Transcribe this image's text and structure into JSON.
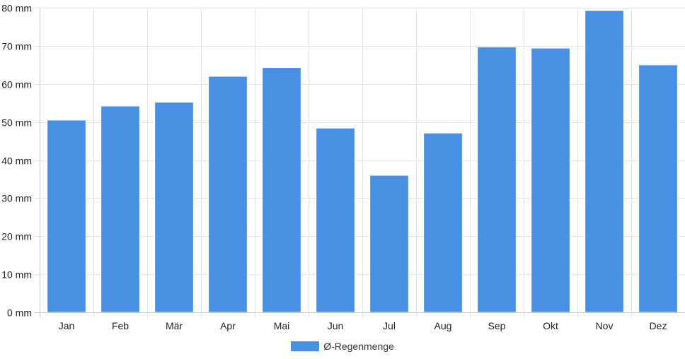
{
  "chart_data": {
    "type": "bar",
    "categories": [
      "Jan",
      "Feb",
      "Mär",
      "Apr",
      "Mai",
      "Jun",
      "Jul",
      "Aug",
      "Sep",
      "Okt",
      "Nov",
      "Dez"
    ],
    "series": [
      {
        "name": "Ø-Regenmenge",
        "values": [
          50.5,
          54.2,
          55.2,
          62.0,
          64.3,
          48.4,
          36.0,
          47.1,
          69.7,
          69.4,
          79.3,
          65.0
        ],
        "color": "#4a90e2"
      }
    ],
    "yticks": [
      "0 mm",
      "10 mm",
      "20 mm",
      "30 mm",
      "40 mm",
      "50 mm",
      "60 mm",
      "70 mm",
      "80 mm"
    ],
    "ylim": [
      0,
      80
    ],
    "grid": true,
    "legend_position": "bottom"
  },
  "legend": {
    "label": "Ø-Regenmenge",
    "color": "#4a90e2"
  }
}
